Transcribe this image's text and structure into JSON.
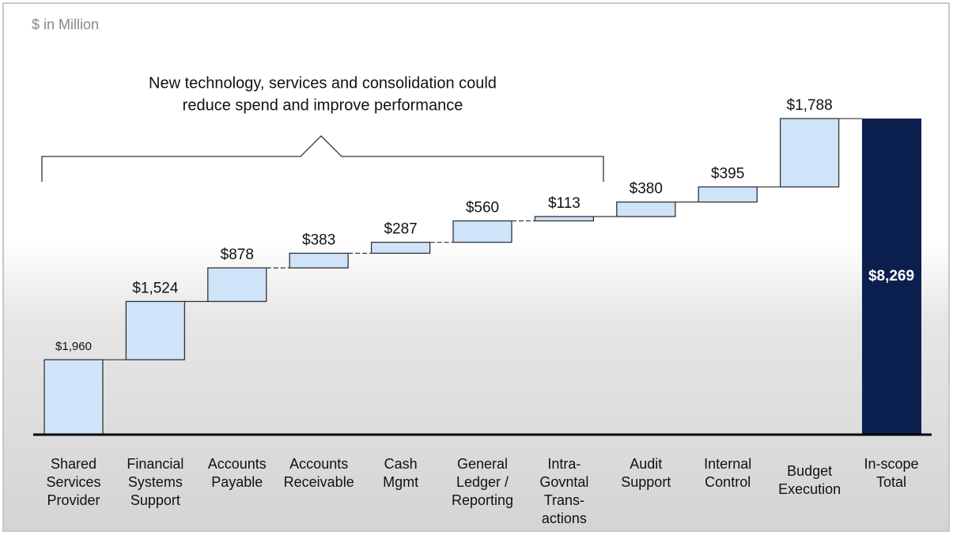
{
  "chart_data": {
    "type": "waterfall",
    "unit_note": "$ in Million",
    "annotation": [
      "New technology, services and consolidation could",
      "reduce spend and improve performance"
    ],
    "categories": [
      [
        "Shared",
        "Services",
        "Provider"
      ],
      [
        "Financial",
        "Systems",
        "Support"
      ],
      [
        "Accounts",
        "Payable"
      ],
      [
        "Accounts",
        "Receivable"
      ],
      [
        "Cash",
        "Mgmt"
      ],
      [
        "General",
        "Ledger /",
        "Reporting"
      ],
      [
        "Intra-",
        "Govntal",
        "Trans-",
        "actions"
      ],
      [
        "Audit",
        "Support"
      ],
      [
        "Internal",
        "Control"
      ],
      [
        "Budget",
        "Execution"
      ],
      [
        "In-scope",
        "Total"
      ]
    ],
    "values": [
      1960,
      1524,
      878,
      383,
      287,
      560,
      113,
      380,
      395,
      1788,
      8269
    ],
    "value_labels": [
      "$1,960",
      "$1,524",
      "$878",
      "$383",
      "$287",
      "$560",
      "$113",
      "$380",
      "$395",
      "$1,788",
      "$8,269"
    ],
    "color": "#cfe4f8",
    "total_color": "#0b1f4f"
  }
}
